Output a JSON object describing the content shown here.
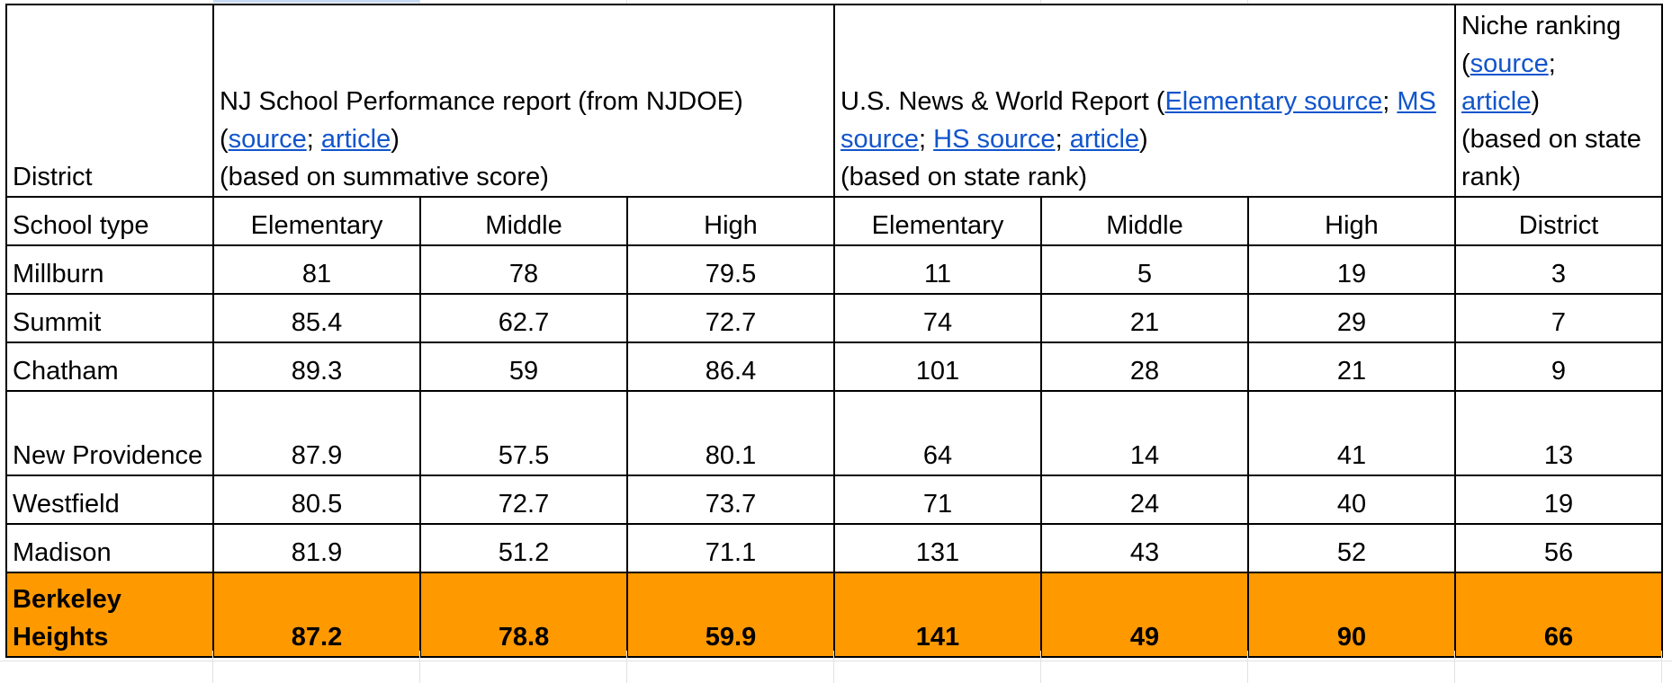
{
  "header": {
    "district_label": "District",
    "nj": {
      "title": "NJ School Performance report (from NJDOE)",
      "open_paren": "(",
      "link_source": "source",
      "sep": "; ",
      "link_article": "article",
      "close_paren": ")",
      "basis": "(based on summative score)"
    },
    "usnews": {
      "title_prefix": "U.S. News & World Report (",
      "link_elementary": "Elementary source",
      "sep1": "; ",
      "link_ms": "MS source",
      "sep2": "; ",
      "link_hs": "HS source",
      "sep3": "; ",
      "link_article": "article",
      "close_paren": ")",
      "basis": "(based on state rank)"
    },
    "niche": {
      "title": "Niche ranking",
      "open_paren": "(",
      "link_source": "source",
      "sep": ";",
      "link_article": "article",
      "close_paren": ")",
      "basis": "(based on state rank)"
    }
  },
  "school_type": {
    "label": "School type",
    "cols": [
      "Elementary",
      "Middle",
      "High",
      "Elementary",
      "Middle",
      "High",
      "District"
    ]
  },
  "rows": [
    {
      "district": "Millburn",
      "values": [
        "81",
        "78",
        "79.5",
        "11",
        "5",
        "19",
        "3"
      ]
    },
    {
      "district": "Summit",
      "values": [
        "85.4",
        "62.7",
        "72.7",
        "74",
        "21",
        "29",
        "7"
      ]
    },
    {
      "district": "Chatham",
      "values": [
        "89.3",
        "59",
        "86.4",
        "101",
        "28",
        "21",
        "9"
      ]
    },
    {
      "district": "New Providence",
      "values": [
        "87.9",
        "57.5",
        "80.1",
        "64",
        "14",
        "41",
        "13"
      ]
    },
    {
      "district": "Westfield",
      "values": [
        "80.5",
        "72.7",
        "73.7",
        "71",
        "24",
        "40",
        "19"
      ]
    },
    {
      "district": "Madison",
      "values": [
        "81.9",
        "51.2",
        "71.1",
        "131",
        "43",
        "52",
        "56"
      ]
    },
    {
      "district": "Berkeley Heights",
      "values": [
        "87.2",
        "78.8",
        "59.9",
        "141",
        "49",
        "90",
        "66"
      ]
    }
  ],
  "colors": {
    "highlight": "#ff9900",
    "link": "#1155cc",
    "border": "#000000",
    "gridline": "#e2e2e2"
  }
}
